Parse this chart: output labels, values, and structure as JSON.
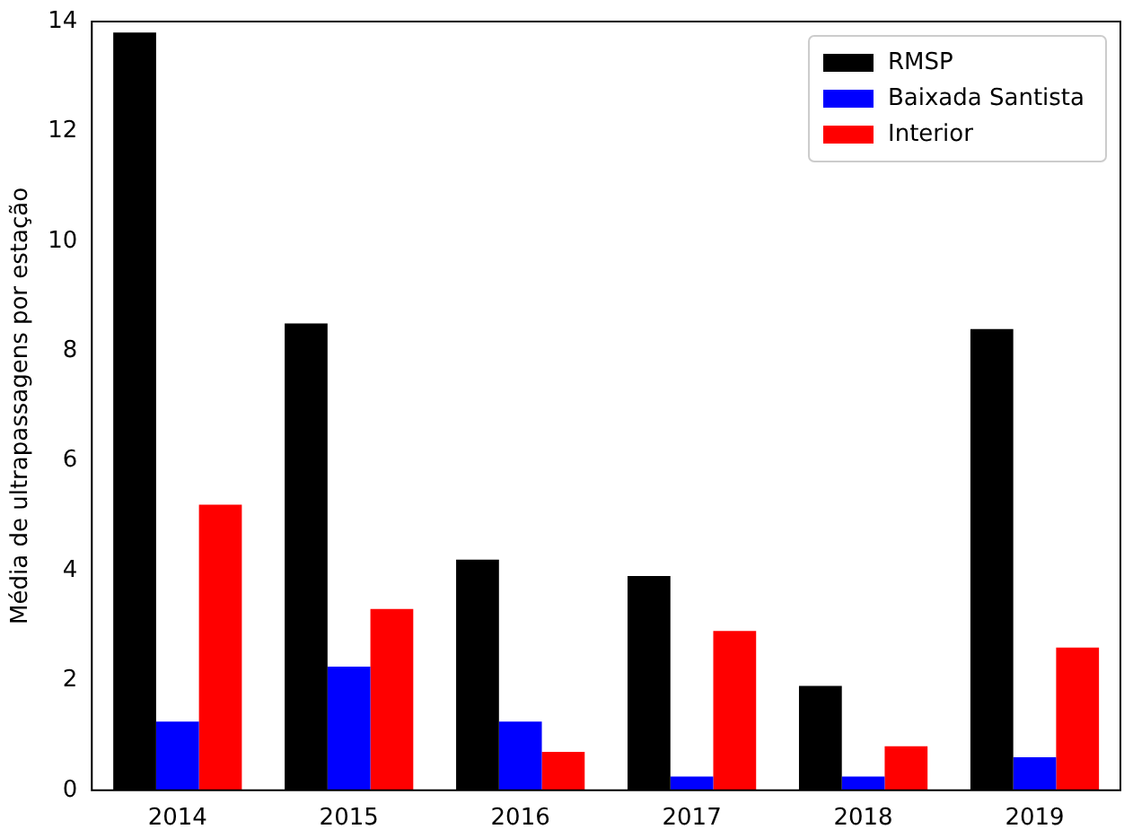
{
  "chart_data": {
    "type": "bar",
    "ylabel": "Média de ultrapassagens por estação",
    "categories": [
      "2014",
      "2015",
      "2016",
      "2017",
      "2018",
      "2019"
    ],
    "series": [
      {
        "name": "RMSP",
        "color": "#000000",
        "values": [
          13.8,
          8.5,
          4.2,
          3.9,
          1.9,
          8.4
        ]
      },
      {
        "name": "Baixada Santista",
        "color": "#0000ff",
        "values": [
          1.25,
          2.25,
          1.25,
          0.25,
          0.25,
          0.6
        ]
      },
      {
        "name": "Interior",
        "color": "#ff0000",
        "values": [
          5.2,
          3.3,
          0.7,
          2.9,
          0.8,
          2.6
        ]
      }
    ],
    "ylim": [
      0,
      14
    ],
    "yticks": [
      0,
      2,
      4,
      6,
      8,
      10,
      12,
      14
    ],
    "grid": false,
    "legend": "top right"
  }
}
